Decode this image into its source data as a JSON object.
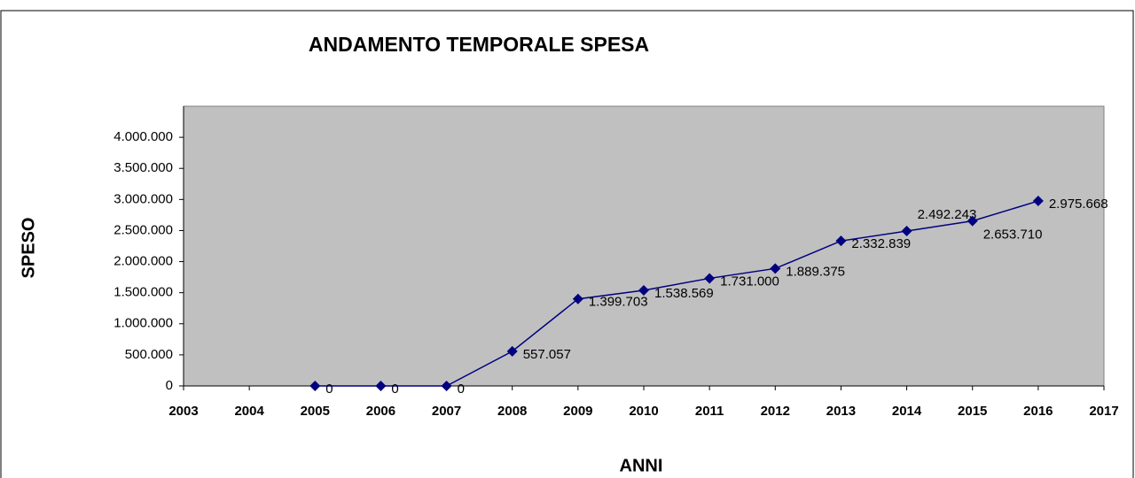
{
  "chart_data": {
    "type": "line",
    "title": "ANDAMENTO TEMPORALE SPESA",
    "x_label": "ANNI",
    "y_label": "SPESO",
    "x": [
      2005,
      2006,
      2007,
      2008,
      2009,
      2010,
      2011,
      2012,
      2013,
      2014,
      2015,
      2016
    ],
    "series": [
      {
        "name": "SPESO",
        "color": "#000080",
        "values": [
          0,
          0,
          0,
          557057,
          1399703,
          1538569,
          1731000,
          1889375,
          2332839,
          2492243,
          2653710,
          2975668
        ],
        "value_labels": [
          "0",
          "0",
          "0",
          "557.057",
          "1.399.703",
          "1.538.569",
          "1.731.000",
          "1.889.375",
          "2.332.839",
          "2.492.243",
          "2.653.710",
          "2.975.668"
        ]
      }
    ],
    "xlim": [
      2003,
      2017
    ],
    "xticks": [
      2003,
      2004,
      2005,
      2006,
      2007,
      2008,
      2009,
      2010,
      2011,
      2012,
      2013,
      2014,
      2015,
      2016,
      2017
    ],
    "ylim": [
      0,
      4500000
    ],
    "yticks": [
      0,
      {
        "value": 500000,
        "label": "500.000"
      },
      {
        "value": 1000000,
        "label": "1.000.000"
      },
      {
        "value": 1500000,
        "label": "1.500.000"
      },
      {
        "value": 2000000,
        "label": "2.000.000"
      },
      {
        "value": 2500000,
        "label": "2.500.000"
      },
      {
        "value": 3000000,
        "label": "3.000.000"
      },
      {
        "value": 3500000,
        "label": "3.500.000"
      },
      {
        "value": 4000000,
        "label": "4.000.000"
      }
    ],
    "plot_background": "#c0c0c0",
    "grid": false
  }
}
